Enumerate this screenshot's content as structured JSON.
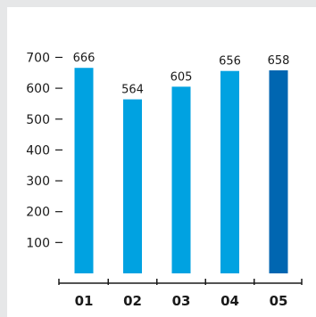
{
  "chart_data": {
    "type": "bar",
    "categories": [
      "01",
      "02",
      "03",
      "04",
      "05"
    ],
    "values": [
      666,
      564,
      605,
      656,
      658
    ],
    "yticks": [
      100,
      200,
      300,
      400,
      500,
      600,
      700
    ],
    "ylim": [
      0,
      800
    ],
    "bar_colors": [
      "#00a2e1",
      "#00a2e1",
      "#00a2e1",
      "#00a2e1",
      "#0066b1"
    ],
    "title": "",
    "xlabel": "",
    "ylabel": "",
    "grid": false
  }
}
